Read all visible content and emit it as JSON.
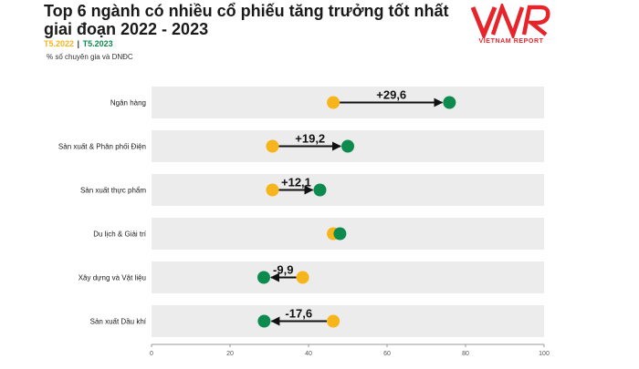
{
  "header": {
    "title_line1": "Top 6 ngành có nhiều cổ phiếu tăng trưởng tốt nhất",
    "title_line2": "giai đoạn 2022 - 2023",
    "legend_2022": "T5.2022",
    "legend_sep": "|",
    "legend_2023": "T5.2023",
    "subtitle": "% số chuyên gia và DNĐC"
  },
  "logo": {
    "mark": "VNR",
    "text": "VIETNAM REPORT",
    "color": "#e8242b"
  },
  "chart_data": {
    "type": "dumbbell",
    "categories": [
      "Ngân hàng",
      "Sản xuất & Phân phối Điện",
      "Sản xuất thực phẩm",
      "Du lịch & Giải trí",
      "Xây dựng và Vật liệu",
      "Sản xuất Dầu khí"
    ],
    "series": [
      {
        "name": "T5.2022",
        "color": "#f5b51b",
        "values": [
          46.3,
          30.8,
          30.8,
          46.3,
          38.5,
          46.3
        ]
      },
      {
        "name": "T5.2023",
        "color": "#0d8a4e",
        "values": [
          75.9,
          50.0,
          42.9,
          48.0,
          28.6,
          28.7
        ]
      }
    ],
    "labels": [
      "+29,6",
      "+19,2",
      "+12,1",
      "",
      "-9,9",
      "-17,6"
    ],
    "xlim": [
      0,
      100
    ],
    "xticks": [
      "0",
      "20",
      "40",
      "60",
      "80",
      "100"
    ],
    "row_background": "#ececec",
    "arrow_color": "#111111"
  }
}
